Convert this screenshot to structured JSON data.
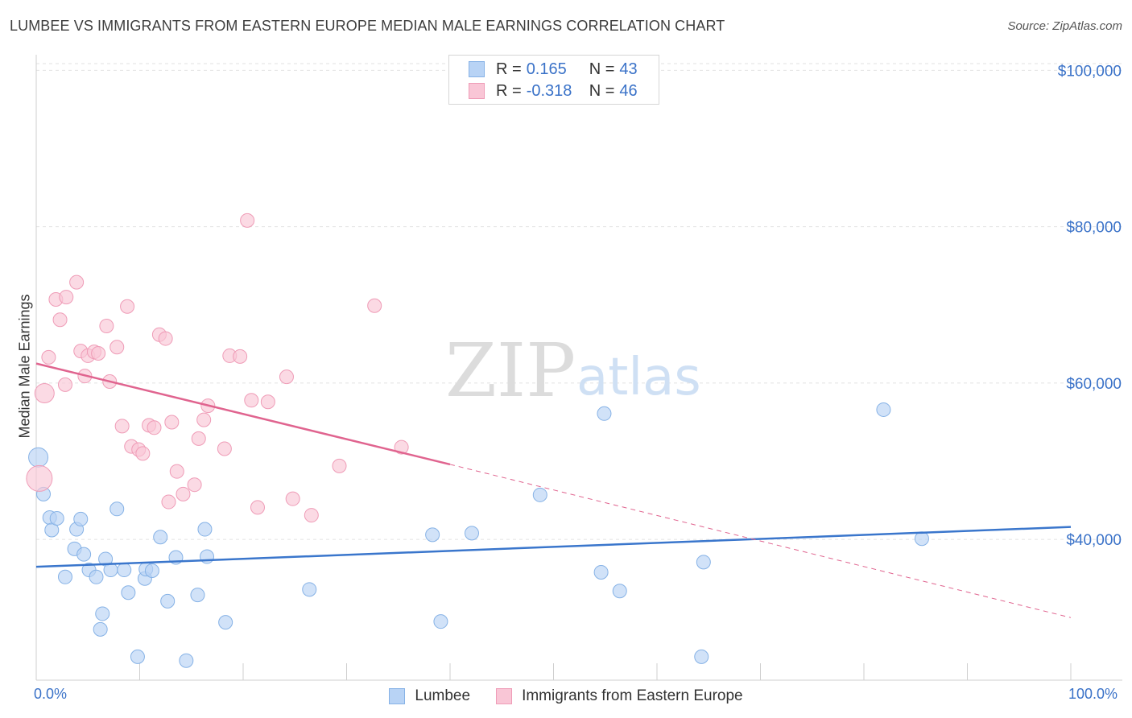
{
  "title": "LUMBEE VS IMMIGRANTS FROM EASTERN EUROPE MEDIAN MALE EARNINGS CORRELATION CHART",
  "source": "Source: ZipAtlas.com",
  "watermark": {
    "zip": "ZIP",
    "atlas": "atlas"
  },
  "legend": {
    "rows": [
      {
        "r_label": "R =",
        "r_value": "0.165",
        "n_label": "N =",
        "n_value": "43",
        "fill": "#b8d3f5",
        "stroke": "#7faee8"
      },
      {
        "r_label": "R =",
        "r_value": "-0.318",
        "n_label": "N =",
        "n_value": "46",
        "fill": "#f9c6d6",
        "stroke": "#ef9cb7"
      }
    ]
  },
  "bottom_legend": [
    "Lumbee",
    "Immigrants from Eastern Europe"
  ],
  "chart_data": {
    "type": "scatter",
    "title": "LUMBEE VS IMMIGRANTS FROM EASTERN EUROPE MEDIAN MALE EARNINGS CORRELATION CHART",
    "xlabel": "",
    "ylabel": "Median Male Earnings",
    "xlim": [
      0,
      100
    ],
    "ylim": [
      22000,
      102000
    ],
    "x_tick_labels": [
      "0.0%",
      "100.0%"
    ],
    "y_ticks": [
      {
        "value": 40000,
        "label": "$40,000"
      },
      {
        "value": 60000,
        "label": "$60,000"
      },
      {
        "value": 80000,
        "label": "$80,000"
      },
      {
        "value": 100000,
        "label": "$100,000"
      }
    ],
    "series": [
      {
        "name": "Lumbee",
        "color": "#3a76cc",
        "point_fill": "#b8d3f5",
        "point_stroke": "#86b2e6",
        "points": [
          [
            0.2,
            50500
          ],
          [
            0.7,
            45800
          ],
          [
            1.3,
            42800
          ],
          [
            1.5,
            41200
          ],
          [
            2.0,
            42700
          ],
          [
            2.8,
            35200
          ],
          [
            3.7,
            38800
          ],
          [
            3.9,
            41300
          ],
          [
            4.3,
            42600
          ],
          [
            4.6,
            38100
          ],
          [
            5.1,
            36100
          ],
          [
            5.8,
            35200
          ],
          [
            6.2,
            28500
          ],
          [
            6.4,
            30500
          ],
          [
            6.7,
            37500
          ],
          [
            7.2,
            36100
          ],
          [
            7.8,
            43900
          ],
          [
            8.5,
            36100
          ],
          [
            8.9,
            33200
          ],
          [
            9.8,
            25000
          ],
          [
            10.5,
            35000
          ],
          [
            10.6,
            36200
          ],
          [
            11.2,
            36000
          ],
          [
            12.0,
            40300
          ],
          [
            12.7,
            32100
          ],
          [
            13.5,
            37700
          ],
          [
            14.5,
            24500
          ],
          [
            15.6,
            32900
          ],
          [
            16.3,
            41300
          ],
          [
            16.5,
            37800
          ],
          [
            18.3,
            29400
          ],
          [
            26.4,
            33600
          ],
          [
            38.3,
            40600
          ],
          [
            39.1,
            29500
          ],
          [
            42.1,
            40800
          ],
          [
            48.7,
            45700
          ],
          [
            54.6,
            35800
          ],
          [
            54.9,
            56100
          ],
          [
            56.4,
            33400
          ],
          [
            64.3,
            25000
          ],
          [
            64.5,
            37100
          ],
          [
            81.9,
            56600
          ],
          [
            85.6,
            40100
          ]
        ],
        "trend": {
          "x_start": 0,
          "y_start": 36500,
          "x_end": 100,
          "y_end": 41600
        }
      },
      {
        "name": "Immigrants from Eastern Europe",
        "color": "#e0648f",
        "point_fill": "#f9c6d6",
        "point_stroke": "#ef9cb7",
        "points": [
          [
            0.3,
            47800
          ],
          [
            0.8,
            58700
          ],
          [
            1.2,
            63300
          ],
          [
            1.9,
            70700
          ],
          [
            2.3,
            68100
          ],
          [
            2.8,
            59800
          ],
          [
            2.9,
            71000
          ],
          [
            3.9,
            72900
          ],
          [
            4.3,
            64100
          ],
          [
            4.7,
            60900
          ],
          [
            5.0,
            63500
          ],
          [
            5.6,
            64000
          ],
          [
            6.0,
            63800
          ],
          [
            6.8,
            67300
          ],
          [
            7.1,
            60200
          ],
          [
            7.8,
            64600
          ],
          [
            8.3,
            54500
          ],
          [
            8.8,
            69800
          ],
          [
            9.2,
            51900
          ],
          [
            9.9,
            51500
          ],
          [
            10.3,
            51000
          ],
          [
            10.9,
            54600
          ],
          [
            11.4,
            54300
          ],
          [
            11.9,
            66200
          ],
          [
            12.5,
            65700
          ],
          [
            12.8,
            44800
          ],
          [
            13.1,
            55000
          ],
          [
            13.6,
            48700
          ],
          [
            14.2,
            45800
          ],
          [
            15.3,
            47000
          ],
          [
            15.7,
            52900
          ],
          [
            16.2,
            55300
          ],
          [
            16.6,
            57100
          ],
          [
            18.2,
            51600
          ],
          [
            18.7,
            63500
          ],
          [
            19.7,
            63400
          ],
          [
            20.4,
            80800
          ],
          [
            20.8,
            57800
          ],
          [
            21.4,
            44100
          ],
          [
            22.4,
            57600
          ],
          [
            24.2,
            60800
          ],
          [
            24.8,
            45200
          ],
          [
            26.6,
            43100
          ],
          [
            29.3,
            49400
          ],
          [
            32.7,
            69900
          ],
          [
            35.3,
            51800
          ]
        ],
        "trend": {
          "x_start": 0,
          "y_start": 62500,
          "x_end": 40,
          "y_end": 49600,
          "dash_to_x": 100,
          "dash_to_y": 30000
        }
      }
    ]
  }
}
